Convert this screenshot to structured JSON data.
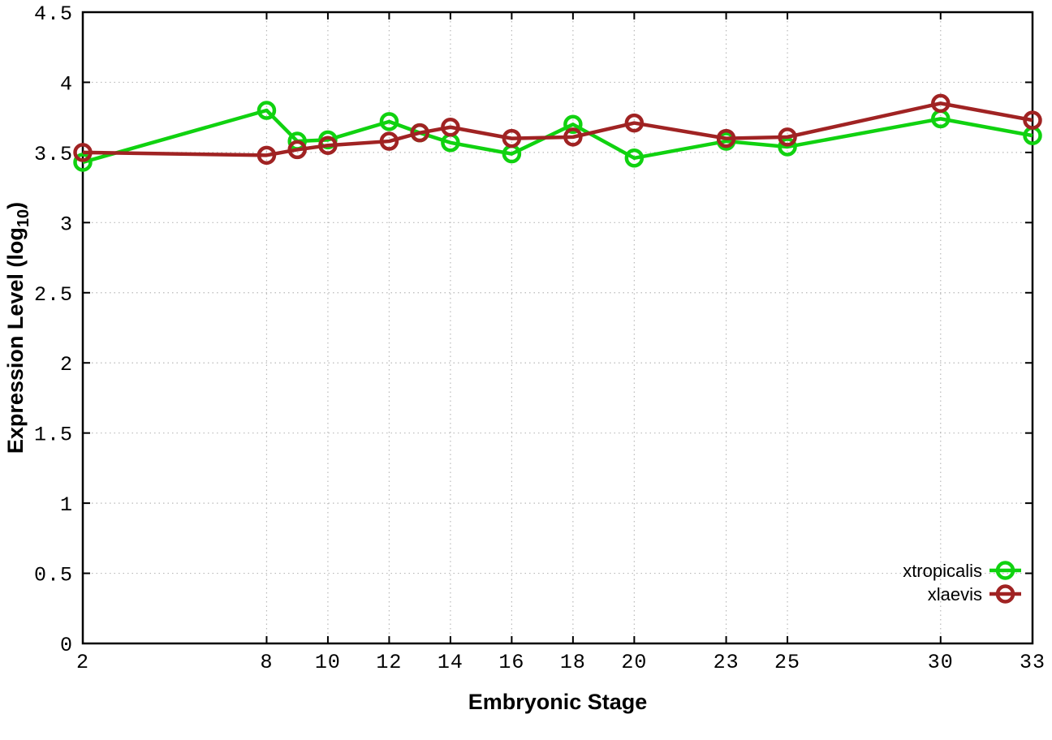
{
  "chart_data": {
    "type": "line",
    "title": "",
    "xlabel": "Embryonic Stage",
    "ylabel": {
      "pre": "Expression Level (log",
      "sub": "10",
      "post": ")"
    },
    "x": [
      2,
      8,
      9,
      10,
      12,
      13,
      14,
      16,
      18,
      20,
      23,
      25,
      30,
      33
    ],
    "series": [
      {
        "name": "xtropicalis",
        "color": "#10d210",
        "values": [
          3.43,
          3.8,
          3.58,
          3.59,
          3.72,
          3.64,
          3.57,
          3.49,
          3.7,
          3.46,
          3.58,
          3.54,
          3.74,
          3.62
        ]
      },
      {
        "name": "xlaevis",
        "color": "#a02323",
        "values": [
          3.5,
          3.48,
          3.52,
          3.55,
          3.58,
          3.64,
          3.68,
          3.6,
          3.61,
          3.71,
          3.6,
          3.61,
          3.85,
          3.73
        ]
      }
    ],
    "xlim": [
      2,
      33
    ],
    "ylim": [
      0,
      4.5
    ],
    "x_ticks": [
      2,
      8,
      10,
      12,
      14,
      16,
      18,
      20,
      23,
      25,
      30,
      33
    ],
    "x_tick_labels": [
      "2",
      "8",
      "10",
      "12",
      "14",
      "16",
      "18",
      "20",
      "23",
      "25",
      "30",
      "33"
    ],
    "y_ticks": [
      0,
      0.5,
      1,
      1.5,
      2,
      2.5,
      3,
      3.5,
      4,
      4.5
    ],
    "y_tick_labels": [
      "0",
      "0.5",
      "1",
      "1.5",
      "2",
      "2.5",
      "3",
      "3.5",
      "4",
      "4.5"
    ],
    "grid": true,
    "legend_position": "bottom-right",
    "legend_entries": [
      "xtropicalis",
      "xlaevis"
    ]
  },
  "style": {
    "background_color": "#ffffff",
    "axis_color": "#000000",
    "grid_color": "#b9b9b9",
    "marker": "open-circle"
  }
}
